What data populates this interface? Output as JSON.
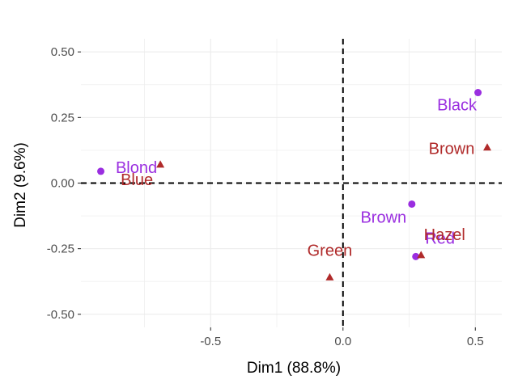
{
  "colors": {
    "row_series": "#9a2ee0",
    "col_series": "#b02a2a",
    "grid": "#ebebeb",
    "axis_text": "#4d4d4d"
  },
  "chart_data": {
    "type": "scatter",
    "title": "",
    "xlabel": "Dim1 (88.8%)",
    "ylabel": "Dim2 (9.6%)",
    "xlim": [
      -0.99,
      0.6
    ],
    "ylim": [
      -0.55,
      0.55
    ],
    "xticks": [
      -0.5,
      0.0,
      0.5
    ],
    "xtick_labels": [
      "-0.5",
      "0.0",
      "0.5"
    ],
    "yticks": [
      -0.5,
      -0.25,
      0.0,
      0.25,
      0.5
    ],
    "ytick_labels": [
      "-0.50",
      "-0.25",
      "0.00",
      "0.25",
      "0.50"
    ],
    "reference_lines": {
      "x": 0,
      "y": 0,
      "style": "dashed"
    },
    "grid": true,
    "series": [
      {
        "marker": "circle",
        "color": "#9a2ee0",
        "points": [
          {
            "label": "Black",
            "x": 0.51,
            "y": 0.345
          },
          {
            "label": "Brown",
            "x": 0.26,
            "y": -0.08
          },
          {
            "label": "Red",
            "x": 0.275,
            "y": -0.28
          },
          {
            "label": "Blond",
            "x": -0.915,
            "y": 0.045
          }
        ]
      },
      {
        "marker": "triangle",
        "color": "#b02a2a",
        "points": [
          {
            "label": "Brown",
            "x": 0.545,
            "y": 0.135
          },
          {
            "label": "Hazel",
            "x": 0.295,
            "y": -0.275
          },
          {
            "label": "Green",
            "x": -0.05,
            "y": -0.36
          },
          {
            "label": "Blue",
            "x": -0.69,
            "y": 0.07
          }
        ]
      }
    ]
  }
}
